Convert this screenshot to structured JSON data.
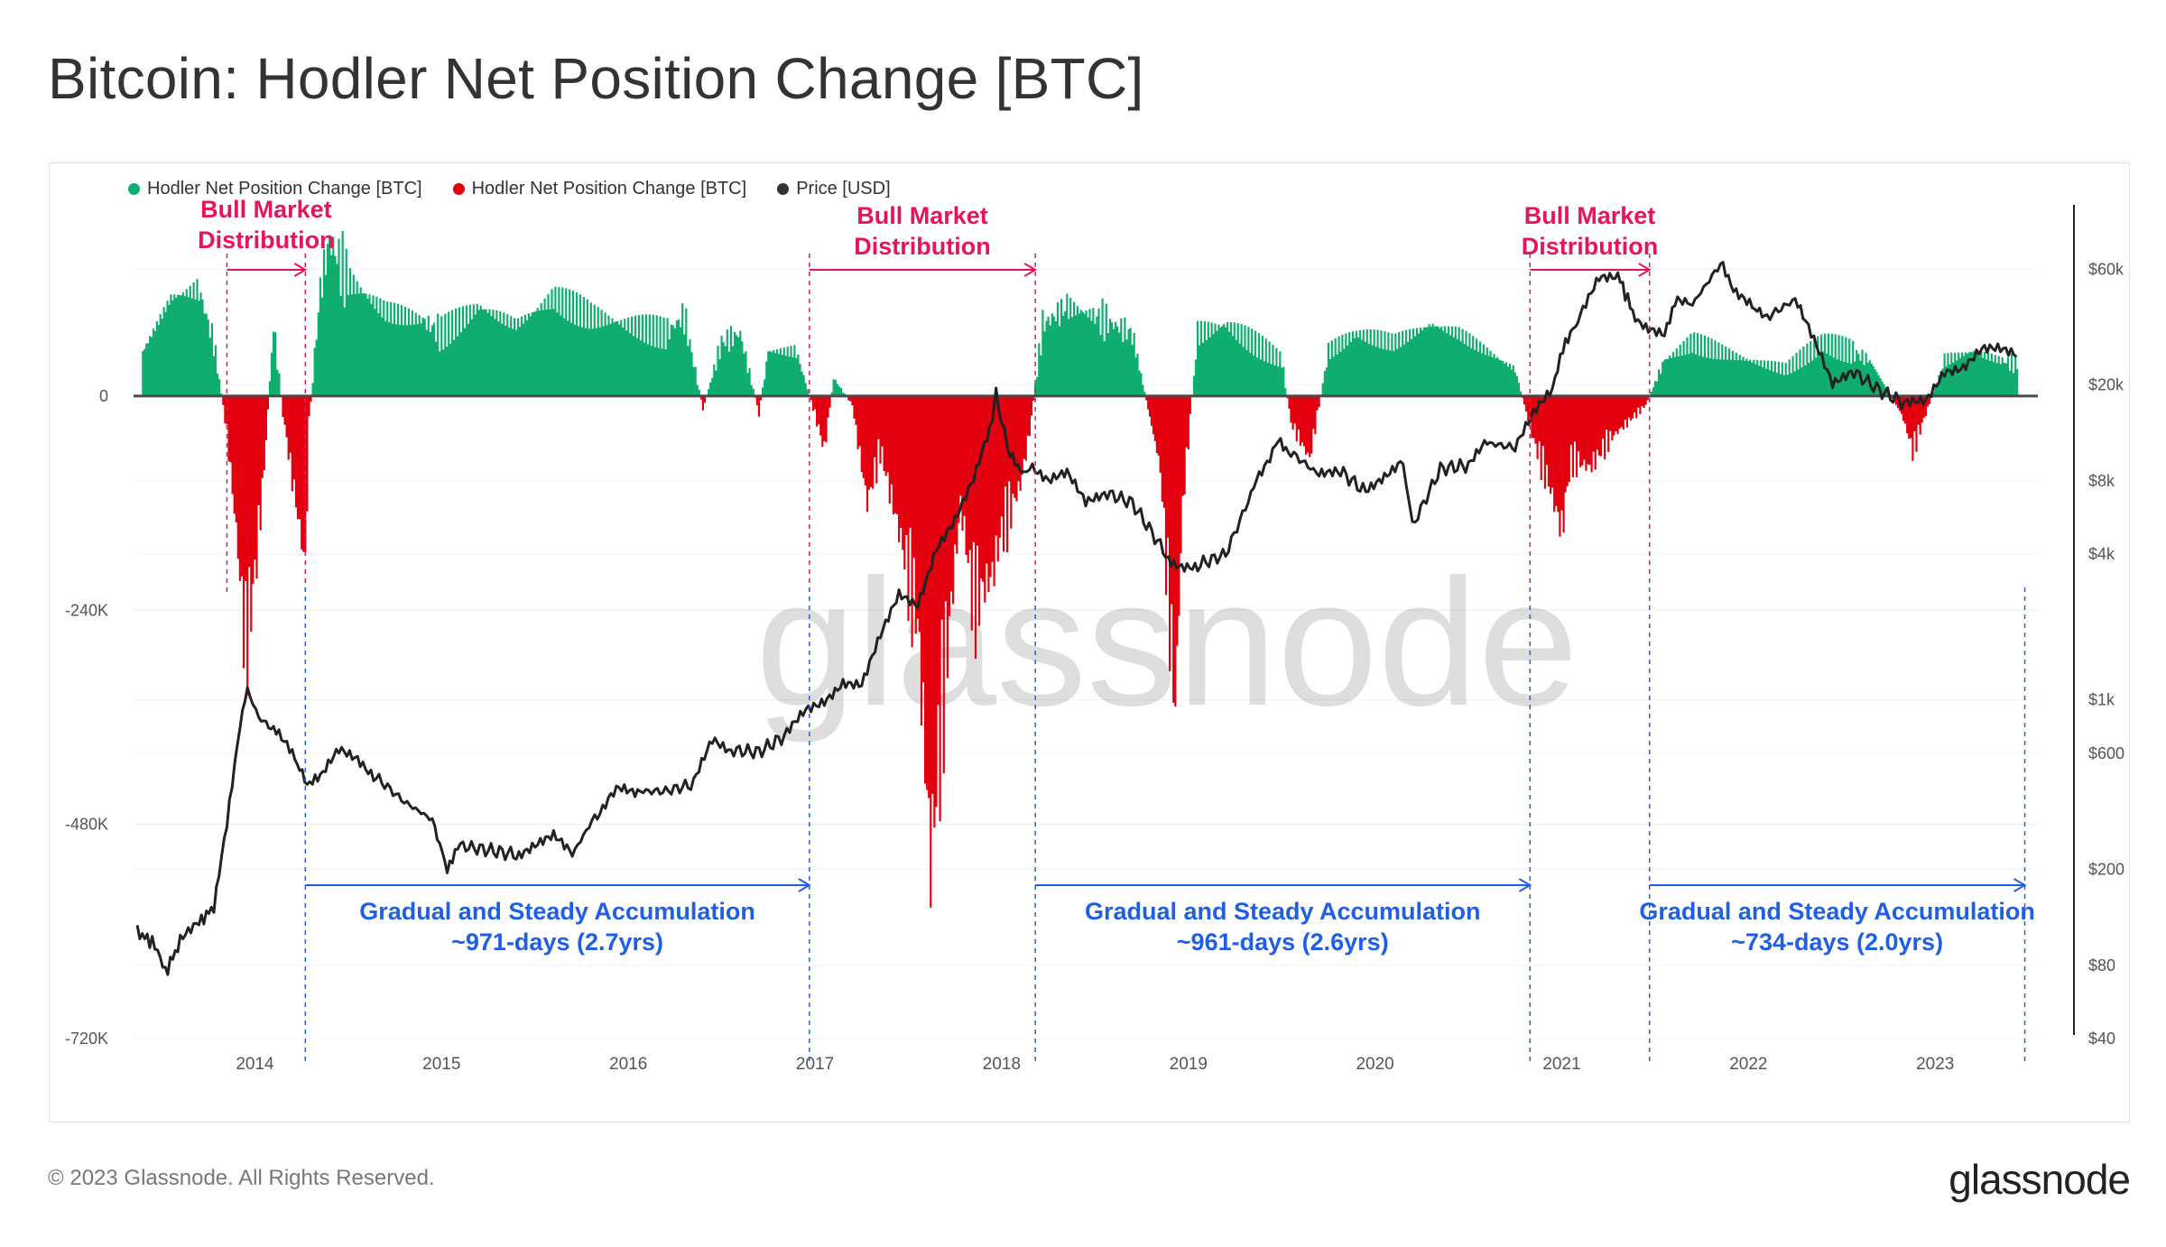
{
  "title": "Bitcoin: Hodler Net Position Change [BTC]",
  "footer": {
    "copyright": "© 2023 Glassnode. All Rights Reserved.",
    "logo": "glassnode"
  },
  "watermark": "glassnode",
  "chart_data": {
    "type": "area",
    "legend": [
      {
        "label": "Hodler Net Position Change [BTC]",
        "color": "#0fae6e"
      },
      {
        "label": "Hodler Net Position Change [BTC]",
        "color": "#e3000f"
      },
      {
        "label": "Price [USD]",
        "color": "#333333"
      }
    ],
    "x_ticks": [
      "2014",
      "2015",
      "2016",
      "2017",
      "2018",
      "2019",
      "2020",
      "2021",
      "2022",
      "2023"
    ],
    "x_range": [
      2013.35,
      2023.55
    ],
    "y_left": {
      "ticks": [
        "0",
        "-240K",
        "-480K",
        "-720K"
      ],
      "values": [
        0,
        -240000,
        -480000,
        -720000
      ],
      "range": [
        -720000,
        190000
      ]
    },
    "y_right": {
      "scale": "log",
      "ticks": [
        "$60k",
        "$20k",
        "$8k",
        "$4k",
        "$1k",
        "$600",
        "$200",
        "$80",
        "$40"
      ],
      "values": [
        60000,
        20000,
        8000,
        4000,
        1000,
        600,
        200,
        80,
        40
      ],
      "range": [
        40,
        90000
      ]
    },
    "hodler_series": [
      [
        2013.4,
        50000
      ],
      [
        2013.55,
        110000
      ],
      [
        2013.7,
        120000
      ],
      [
        2013.78,
        60000
      ],
      [
        2013.85,
        -40000
      ],
      [
        2013.9,
        -150000
      ],
      [
        2013.95,
        -280000
      ],
      [
        2014.0,
        -200000
      ],
      [
        2014.05,
        -80000
      ],
      [
        2014.1,
        80000
      ],
      [
        2014.15,
        -20000
      ],
      [
        2014.22,
        -120000
      ],
      [
        2014.27,
        -190000
      ],
      [
        2014.29,
        -30000
      ],
      [
        2014.35,
        120000
      ],
      [
        2014.4,
        175000
      ],
      [
        2014.5,
        130000
      ],
      [
        2014.7,
        95000
      ],
      [
        2014.9,
        85000
      ],
      [
        2015.0,
        70000
      ],
      [
        2015.2,
        100000
      ],
      [
        2015.4,
        80000
      ],
      [
        2015.6,
        110000
      ],
      [
        2015.8,
        90000
      ],
      [
        2016.0,
        80000
      ],
      [
        2016.2,
        70000
      ],
      [
        2016.3,
        90000
      ],
      [
        2016.4,
        -15000
      ],
      [
        2016.5,
        60000
      ],
      [
        2016.6,
        70000
      ],
      [
        2016.7,
        -20000
      ],
      [
        2016.75,
        50000
      ],
      [
        2016.9,
        50000
      ],
      [
        2017.0,
        -20000
      ],
      [
        2017.05,
        -60000
      ],
      [
        2017.1,
        20000
      ],
      [
        2017.2,
        -10000
      ],
      [
        2017.28,
        -120000
      ],
      [
        2017.35,
        -60000
      ],
      [
        2017.45,
        -150000
      ],
      [
        2017.55,
        -250000
      ],
      [
        2017.62,
        -520000
      ],
      [
        2017.7,
        -300000
      ],
      [
        2017.78,
        -120000
      ],
      [
        2017.85,
        -230000
      ],
      [
        2017.95,
        -200000
      ],
      [
        2018.0,
        -150000
      ],
      [
        2018.1,
        -100000
      ],
      [
        2018.15,
        -40000
      ],
      [
        2018.22,
        80000
      ],
      [
        2018.35,
        100000
      ],
      [
        2018.5,
        90000
      ],
      [
        2018.6,
        80000
      ],
      [
        2018.7,
        70000
      ],
      [
        2018.85,
        -80000
      ],
      [
        2018.93,
        -350000
      ],
      [
        2018.97,
        -120000
      ],
      [
        2019.05,
        70000
      ],
      [
        2019.2,
        80000
      ],
      [
        2019.35,
        60000
      ],
      [
        2019.5,
        40000
      ],
      [
        2019.55,
        -30000
      ],
      [
        2019.65,
        -70000
      ],
      [
        2019.75,
        50000
      ],
      [
        2019.9,
        70000
      ],
      [
        2020.1,
        60000
      ],
      [
        2020.3,
        80000
      ],
      [
        2020.45,
        70000
      ],
      [
        2020.6,
        50000
      ],
      [
        2020.75,
        30000
      ],
      [
        2020.85,
        -50000
      ],
      [
        2020.92,
        -90000
      ],
      [
        2021.0,
        -150000
      ],
      [
        2021.05,
        -70000
      ],
      [
        2021.15,
        -80000
      ],
      [
        2021.25,
        -50000
      ],
      [
        2021.35,
        -30000
      ],
      [
        2021.45,
        -10000
      ],
      [
        2021.55,
        40000
      ],
      [
        2021.7,
        60000
      ],
      [
        2021.85,
        50000
      ],
      [
        2022.0,
        40000
      ],
      [
        2022.2,
        30000
      ],
      [
        2022.4,
        60000
      ],
      [
        2022.55,
        50000
      ],
      [
        2022.65,
        40000
      ],
      [
        2022.82,
        -20000
      ],
      [
        2022.88,
        -60000
      ],
      [
        2022.95,
        -20000
      ],
      [
        2023.05,
        40000
      ],
      [
        2023.2,
        50000
      ],
      [
        2023.35,
        40000
      ],
      [
        2023.45,
        35000
      ]
    ],
    "price_series": [
      [
        2013.37,
        110
      ],
      [
        2013.45,
        100
      ],
      [
        2013.52,
        75
      ],
      [
        2013.6,
        100
      ],
      [
        2013.7,
        120
      ],
      [
        2013.78,
        140
      ],
      [
        2013.85,
        300
      ],
      [
        2013.92,
        800
      ],
      [
        2013.96,
        1100
      ],
      [
        2014.02,
        850
      ],
      [
        2014.1,
        750
      ],
      [
        2014.2,
        600
      ],
      [
        2014.28,
        450
      ],
      [
        2014.35,
        470
      ],
      [
        2014.45,
        620
      ],
      [
        2014.55,
        580
      ],
      [
        2014.65,
        480
      ],
      [
        2014.8,
        380
      ],
      [
        2014.95,
        320
      ],
      [
        2015.03,
        200
      ],
      [
        2015.1,
        250
      ],
      [
        2015.25,
        240
      ],
      [
        2015.4,
        230
      ],
      [
        2015.5,
        250
      ],
      [
        2015.6,
        270
      ],
      [
        2015.7,
        230
      ],
      [
        2015.82,
        330
      ],
      [
        2015.95,
        430
      ],
      [
        2016.05,
        420
      ],
      [
        2016.2,
        420
      ],
      [
        2016.35,
        450
      ],
      [
        2016.45,
        680
      ],
      [
        2016.55,
        620
      ],
      [
        2016.7,
        610
      ],
      [
        2016.85,
        720
      ],
      [
        2016.95,
        900
      ],
      [
        2017.05,
        1000
      ],
      [
        2017.15,
        1200
      ],
      [
        2017.25,
        1150
      ],
      [
        2017.35,
        1800
      ],
      [
        2017.45,
        2700
      ],
      [
        2017.55,
        2500
      ],
      [
        2017.65,
        4300
      ],
      [
        2017.75,
        5500
      ],
      [
        2017.85,
        8000
      ],
      [
        2017.95,
        14000
      ],
      [
        2017.97,
        18500
      ],
      [
        2018.03,
        11000
      ],
      [
        2018.1,
        8500
      ],
      [
        2018.15,
        9500
      ],
      [
        2018.25,
        8000
      ],
      [
        2018.35,
        8500
      ],
      [
        2018.45,
        6500
      ],
      [
        2018.55,
        7200
      ],
      [
        2018.7,
        6500
      ],
      [
        2018.88,
        4000
      ],
      [
        2018.95,
        3500
      ],
      [
        2019.05,
        3600
      ],
      [
        2019.2,
        4000
      ],
      [
        2019.35,
        7500
      ],
      [
        2019.48,
        12000
      ],
      [
        2019.55,
        10500
      ],
      [
        2019.7,
        8500
      ],
      [
        2019.8,
        9000
      ],
      [
        2019.95,
        7200
      ],
      [
        2020.05,
        8500
      ],
      [
        2020.15,
        10000
      ],
      [
        2020.2,
        5200
      ],
      [
        2020.35,
        9000
      ],
      [
        2020.5,
        9300
      ],
      [
        2020.6,
        11500
      ],
      [
        2020.75,
        11000
      ],
      [
        2020.85,
        15000
      ],
      [
        2020.95,
        19000
      ],
      [
        2021.02,
        30000
      ],
      [
        2021.1,
        38000
      ],
      [
        2021.2,
        55000
      ],
      [
        2021.3,
        57000
      ],
      [
        2021.38,
        40000
      ],
      [
        2021.45,
        34000
      ],
      [
        2021.55,
        33000
      ],
      [
        2021.62,
        45000
      ],
      [
        2021.7,
        43000
      ],
      [
        2021.85,
        63000
      ],
      [
        2021.92,
        50000
      ],
      [
        2022.02,
        42000
      ],
      [
        2022.1,
        38000
      ],
      [
        2022.25,
        45000
      ],
      [
        2022.35,
        30000
      ],
      [
        2022.45,
        20000
      ],
      [
        2022.55,
        23000
      ],
      [
        2022.7,
        19000
      ],
      [
        2022.85,
        16500
      ],
      [
        2022.95,
        17000
      ],
      [
        2023.05,
        23000
      ],
      [
        2023.15,
        24000
      ],
      [
        2023.25,
        28000
      ],
      [
        2023.35,
        27500
      ],
      [
        2023.45,
        26000
      ]
    ],
    "annotations": {
      "distribution_labels": [
        {
          "text": "Bull Market Distribution",
          "x_start": 2013.85,
          "x_end": 2014.27
        },
        {
          "text": "Bull Market Distribution",
          "x_start": 2016.97,
          "x_end": 2018.18
        },
        {
          "text": "Bull Market Distribution",
          "x_start": 2020.83,
          "x_end": 2021.47
        }
      ],
      "accumulation_labels": [
        {
          "title": "Gradual and Steady Accumulation",
          "subtitle": "~971-days (2.7yrs)",
          "x_start": 2014.27,
          "x_end": 2016.97
        },
        {
          "title": "Gradual and Steady Accumulation",
          "subtitle": "~961-days (2.6yrs)",
          "x_start": 2018.18,
          "x_end": 2020.83
        },
        {
          "title": "Gradual and Steady Accumulation",
          "subtitle": "~734-days (2.0yrs)",
          "x_start": 2021.47,
          "x_end": 2023.48
        }
      ],
      "distribution_color": "#e8145a",
      "accumulation_color": "#1f5fe6"
    }
  }
}
